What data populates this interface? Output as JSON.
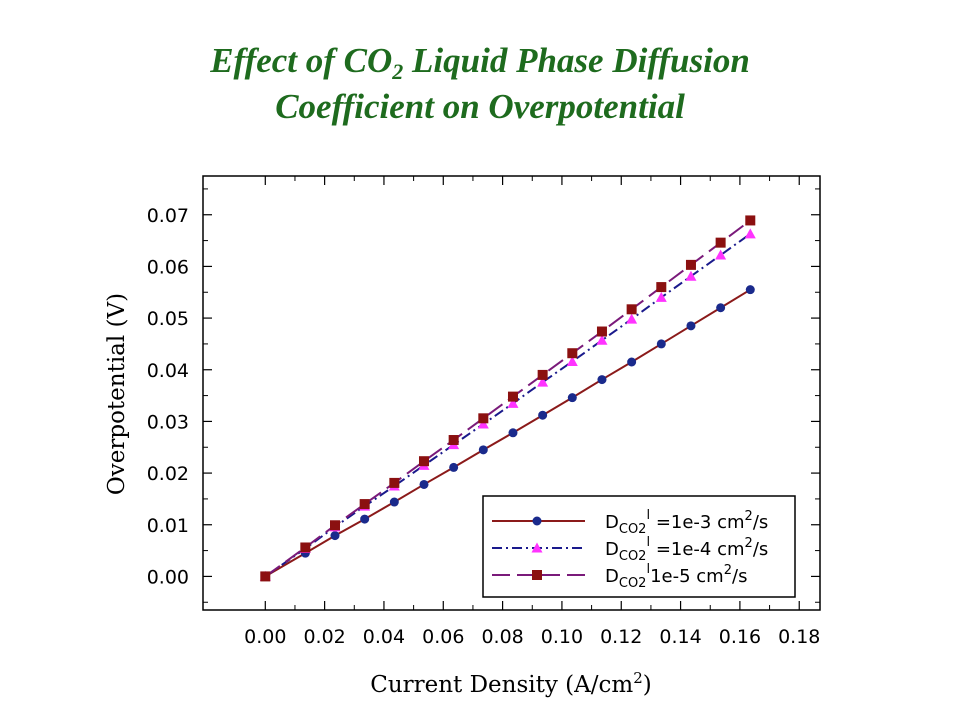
{
  "title": {
    "line1_pre": "Effect of CO",
    "line1_sub": "2",
    "line1_post": " Liquid Phase Diffusion",
    "line2": "Coefficient on Overpotential"
  },
  "colors": {
    "title": "#1e6b1e",
    "series1_line": "#8b1a1a",
    "series1_marker": "#1a2a8c",
    "series2_line": "#1a1a8c",
    "series2_marker": "#ff33ff",
    "series3_line": "#7a1a7a",
    "series3_marker": "#8b1010"
  },
  "chart_data": {
    "type": "line",
    "xlabel_pre": "Current Density (A/cm",
    "xlabel_sup": "2",
    "xlabel_post": ")",
    "ylabel": "Overpotential (V)",
    "xlim": [
      -0.021,
      0.187
    ],
    "ylim": [
      -0.0065,
      0.0775
    ],
    "xticks": [
      "0.00",
      "0.02",
      "0.04",
      "0.06",
      "0.08",
      "0.10",
      "0.12",
      "0.14",
      "0.16",
      "0.18"
    ],
    "yticks": [
      "0.00",
      "0.01",
      "0.02",
      "0.03",
      "0.04",
      "0.05",
      "0.06",
      "0.07"
    ],
    "grid": false,
    "legend_position": "bottom-right",
    "x": [
      0.0,
      0.0135,
      0.0235,
      0.0335,
      0.0435,
      0.0535,
      0.0635,
      0.0735,
      0.0835,
      0.0935,
      0.1035,
      0.1135,
      0.1235,
      0.1335,
      0.1435,
      0.1535,
      0.1635
    ],
    "series": [
      {
        "label_main": "D",
        "label_sub": "CO2",
        "label_sup1": "l",
        "label_mid": " =1e-3 cm",
        "label_sup2": "2",
        "label_end": "/s",
        "marker": "circle",
        "dash": "",
        "values": [
          0.0,
          0.0045,
          0.0079,
          0.0111,
          0.0144,
          0.0178,
          0.0211,
          0.0245,
          0.0278,
          0.0312,
          0.0346,
          0.0381,
          0.0415,
          0.045,
          0.0485,
          0.052,
          0.0555
        ]
      },
      {
        "label_main": "D",
        "label_sub": "CO2",
        "label_sup1": "l",
        "label_mid": " =1e-4 cm",
        "label_sup2": "2",
        "label_end": "/s",
        "marker": "triangle",
        "dash": "10 4 2 4",
        "values": [
          0.0,
          0.0054,
          0.0096,
          0.0136,
          0.0175,
          0.0215,
          0.0255,
          0.0295,
          0.0335,
          0.0376,
          0.0416,
          0.0457,
          0.0498,
          0.054,
          0.0581,
          0.0622,
          0.0663
        ]
      },
      {
        "label_main": "D",
        "label_sub": "CO2",
        "label_sup1": "l",
        "label_mid": "1e-5 cm",
        "label_sup2": "2",
        "label_end": "/s",
        "marker": "square",
        "dash": "18 7",
        "values": [
          0.0,
          0.0056,
          0.0099,
          0.014,
          0.0181,
          0.0223,
          0.0264,
          0.0306,
          0.0348,
          0.039,
          0.0432,
          0.0474,
          0.0517,
          0.056,
          0.0603,
          0.0646,
          0.0689
        ]
      }
    ]
  }
}
